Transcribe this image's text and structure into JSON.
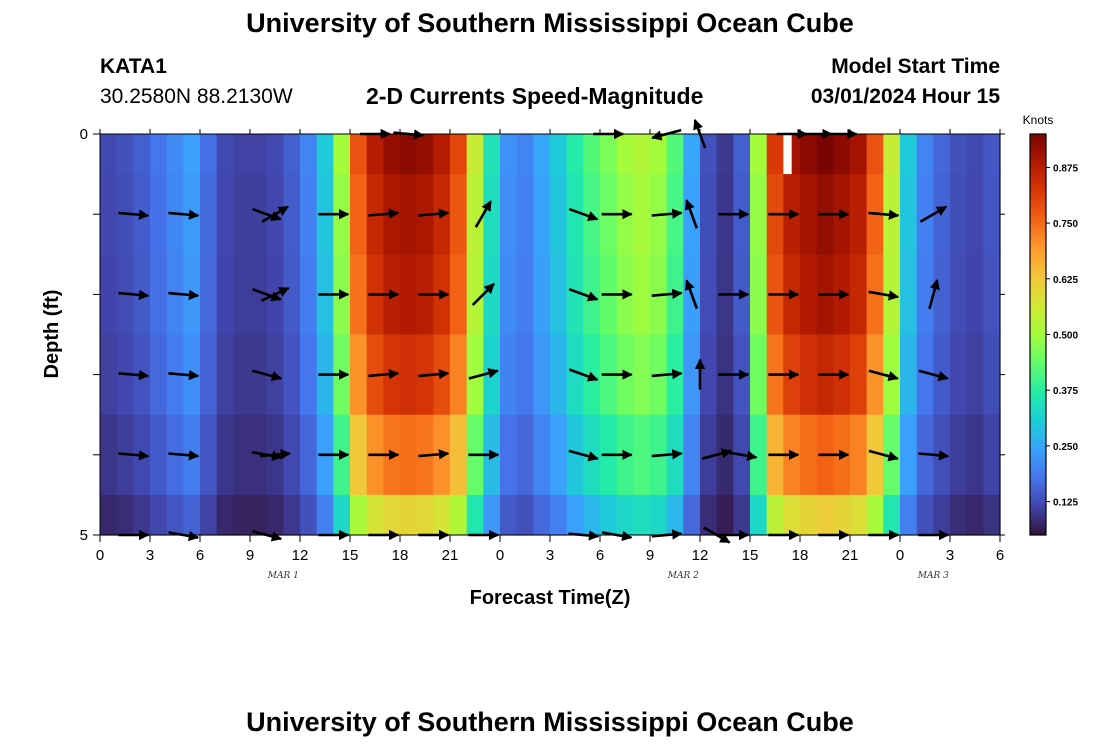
{
  "page": {
    "title": "University of Southern Mississippi Ocean Cube",
    "title_repeat": "University of Southern Mississippi Ocean Cube",
    "station": "KATA1",
    "coords": "30.2580N  88.2130W",
    "subtitle": "2-D Currents Speed-Magnitude",
    "model_start_label": "Model Start Time",
    "model_start_value": "03/01/2024 Hour 15"
  },
  "colors": {
    "arrow": "#000000",
    "gap": "#ffffff",
    "colormap": [
      "#30123b",
      "#4145ab",
      "#4675ed",
      "#39a2fc",
      "#1bcfd4",
      "#24eca6",
      "#61fc6c",
      "#a4fc3b",
      "#d1e834",
      "#f3c63a",
      "#fe9b2d",
      "#f36315",
      "#d93806",
      "#b11901",
      "#7a0402"
    ]
  },
  "chart_data": {
    "type": "heatmap",
    "title": "2-D Currents Speed-Magnitude",
    "xlabel": "Forecast Time(Z)",
    "ylabel": "Depth (ft)",
    "colorbar_title": "Knots",
    "x_tick_labels": [
      "0",
      "3",
      "6",
      "9",
      "12",
      "15",
      "18",
      "21",
      "0",
      "3",
      "6",
      "9",
      "12",
      "15",
      "18",
      "21",
      "0",
      "3",
      "6"
    ],
    "date_labels": [
      {
        "label": "MAR 1",
        "hour": 11
      },
      {
        "label": "MAR 2",
        "hour": 35
      },
      {
        "label": "MAR 3",
        "hour": 50
      }
    ],
    "y_tick_labels": [
      {
        "label": "0",
        "depth": 0
      },
      {
        "label": "5",
        "depth": 5
      }
    ],
    "xlim": [
      0,
      54
    ],
    "ylim": [
      0,
      5
    ],
    "colorbar_range": [
      0.05,
      0.95
    ],
    "colorbar_ticks": [
      0.125,
      0.25,
      0.375,
      0.5,
      0.625,
      0.75,
      0.875
    ],
    "colorbar_tick_labels": [
      "0.125",
      "0.250",
      "0.375",
      "0.500",
      "0.625",
      "0.750",
      "0.875"
    ],
    "hours": [
      0,
      1,
      2,
      3,
      4,
      5,
      6,
      7,
      8,
      9,
      10,
      11,
      12,
      13,
      14,
      15,
      16,
      17,
      18,
      19,
      20,
      21,
      22,
      23,
      24,
      25,
      26,
      27,
      28,
      29,
      30,
      31,
      32,
      33,
      34,
      35,
      36,
      37,
      38,
      39,
      40,
      41,
      42,
      43,
      44,
      45,
      46,
      47,
      48,
      49,
      50,
      51,
      52,
      53
    ],
    "depth_levels": [
      0.0,
      0.5,
      1.5,
      2.5,
      3.5,
      4.5
    ],
    "speed_profile_knots": [
      0.12,
      0.13,
      0.15,
      0.18,
      0.21,
      0.24,
      0.17,
      0.12,
      0.11,
      0.11,
      0.12,
      0.15,
      0.2,
      0.3,
      0.5,
      0.78,
      0.88,
      0.92,
      0.93,
      0.92,
      0.88,
      0.8,
      0.55,
      0.35,
      0.22,
      0.2,
      0.25,
      0.3,
      0.37,
      0.42,
      0.46,
      0.5,
      0.52,
      0.5,
      0.42,
      0.25,
      0.13,
      0.1,
      0.15,
      0.5,
      0.82,
      0.9,
      0.93,
      0.95,
      0.93,
      0.9,
      0.78,
      0.55,
      0.3,
      0.2,
      0.16,
      0.13,
      0.12,
      0.14
    ],
    "depth_factor": [
      1.0,
      0.97,
      0.95,
      0.9,
      0.8,
      0.65
    ],
    "speed_units": "knots",
    "no_data": [
      {
        "hour_start": 41,
        "hour_end": 41.5,
        "depth_start": 0,
        "depth_end": 0.5
      }
    ],
    "vectors": [
      {
        "depth": 0,
        "points": [
          [
            16.5,
            0
          ],
          [
            18.5,
            -5
          ],
          [
            30.5,
            0
          ],
          [
            34,
            195
          ],
          [
            36,
            110
          ],
          [
            41.5,
            0
          ],
          [
            43,
            0
          ],
          [
            44.5,
            0
          ]
        ]
      },
      {
        "depth": 1,
        "points": [
          [
            2,
            355
          ],
          [
            5,
            355
          ],
          [
            10,
            340
          ],
          [
            10.5,
            30
          ],
          [
            14,
            0
          ],
          [
            17,
            5
          ],
          [
            20,
            5
          ],
          [
            23,
            60
          ],
          [
            29,
            340
          ],
          [
            31,
            0
          ],
          [
            34,
            5
          ],
          [
            35.5,
            110
          ],
          [
            38,
            0
          ],
          [
            41,
            0
          ],
          [
            44,
            0
          ],
          [
            47,
            355
          ],
          [
            50,
            30
          ]
        ]
      },
      {
        "depth": 2,
        "points": [
          [
            2,
            355
          ],
          [
            5,
            355
          ],
          [
            10,
            340
          ],
          [
            10.5,
            25
          ],
          [
            14,
            0
          ],
          [
            17,
            0
          ],
          [
            20,
            0
          ],
          [
            23,
            45
          ],
          [
            29,
            340
          ],
          [
            31,
            0
          ],
          [
            34,
            5
          ],
          [
            35.5,
            110
          ],
          [
            38,
            0
          ],
          [
            41,
            0
          ],
          [
            44,
            0
          ],
          [
            47,
            350
          ],
          [
            50,
            75
          ]
        ]
      },
      {
        "depth": 3,
        "points": [
          [
            2,
            355
          ],
          [
            5,
            355
          ],
          [
            10,
            345
          ],
          [
            14,
            0
          ],
          [
            17,
            5
          ],
          [
            20,
            5
          ],
          [
            23,
            15
          ],
          [
            29,
            340
          ],
          [
            31,
            0
          ],
          [
            34,
            5
          ],
          [
            36,
            90
          ],
          [
            38,
            0
          ],
          [
            41,
            0
          ],
          [
            44,
            0
          ],
          [
            47,
            345
          ],
          [
            50,
            345
          ]
        ]
      },
      {
        "depth": 4,
        "points": [
          [
            2,
            355
          ],
          [
            5,
            355
          ],
          [
            10,
            350
          ],
          [
            10.5,
            5
          ],
          [
            14,
            0
          ],
          [
            17,
            0
          ],
          [
            20,
            5
          ],
          [
            23,
            0
          ],
          [
            29,
            345
          ],
          [
            31,
            0
          ],
          [
            34,
            5
          ],
          [
            37,
            15
          ],
          [
            38.5,
            350
          ],
          [
            41,
            0
          ],
          [
            44,
            0
          ],
          [
            47,
            345
          ],
          [
            50,
            355
          ]
        ]
      },
      {
        "depth": 5,
        "points": [
          [
            2,
            0
          ],
          [
            5,
            350
          ],
          [
            10,
            345
          ],
          [
            14,
            0
          ],
          [
            17,
            0
          ],
          [
            20,
            0
          ],
          [
            23,
            0
          ],
          [
            29,
            355
          ],
          [
            31,
            350
          ],
          [
            34,
            5
          ],
          [
            37,
            330
          ],
          [
            38,
            0
          ],
          [
            41,
            0
          ],
          [
            44,
            0
          ],
          [
            47,
            0
          ],
          [
            50,
            0
          ]
        ]
      }
    ]
  }
}
